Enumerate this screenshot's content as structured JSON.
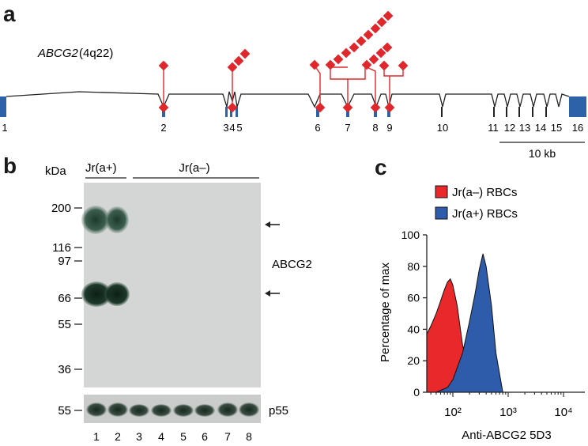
{
  "panel_a": {
    "label": "a",
    "gene": "ABCG2",
    "locus": "(4q22)",
    "exons": [
      "1",
      "2",
      "3",
      "4",
      "5",
      "6",
      "7",
      "8",
      "9",
      "10",
      "11",
      "12",
      "13",
      "14",
      "15",
      "16"
    ],
    "scale_bar": "10 kb",
    "colors": {
      "exon": "#2e62a8",
      "mutation": "#e0282c",
      "intron": "#222222"
    }
  },
  "panel_b": {
    "label": "b",
    "unit": "kDa",
    "group_pos": "Jr(a+)",
    "group_neg": "Jr(a–)",
    "markers": [
      "200",
      "116",
      "97",
      "66",
      "55",
      "36"
    ],
    "loading_marker": "55",
    "protein": "ABCG2",
    "loading_protein": "p55",
    "lanes": [
      "1",
      "2",
      "3",
      "4",
      "5",
      "6",
      "7",
      "8"
    ]
  },
  "panel_c": {
    "label": "c",
    "chart_data": {
      "type": "area",
      "xlabel": "Anti-ABCG2 5D3",
      "ylabel": "Percentage of max",
      "xscale": "log",
      "xticks": [
        "10²",
        "10³",
        "10⁴"
      ],
      "yticks": [
        "0",
        "20",
        "40",
        "60",
        "80",
        "100"
      ],
      "ylim": [
        0,
        100
      ],
      "legend_position": "top-left",
      "series": [
        {
          "name": "Jr(a–) RBCs",
          "color": "#e8282a",
          "x": [
            30,
            40,
            50,
            60,
            70,
            80,
            90,
            100,
            120,
            150,
            200,
            250
          ],
          "y": [
            37,
            42,
            50,
            58,
            65,
            70,
            72,
            68,
            55,
            30,
            10,
            0
          ]
        },
        {
          "name": "Jr(a+) RBCs",
          "color": "#2f5bab",
          "x": [
            50,
            80,
            100,
            150,
            200,
            250,
            300,
            350,
            400,
            500,
            600,
            800
          ],
          "y": [
            0,
            3,
            8,
            25,
            45,
            62,
            78,
            88,
            80,
            55,
            25,
            0
          ]
        }
      ]
    }
  }
}
